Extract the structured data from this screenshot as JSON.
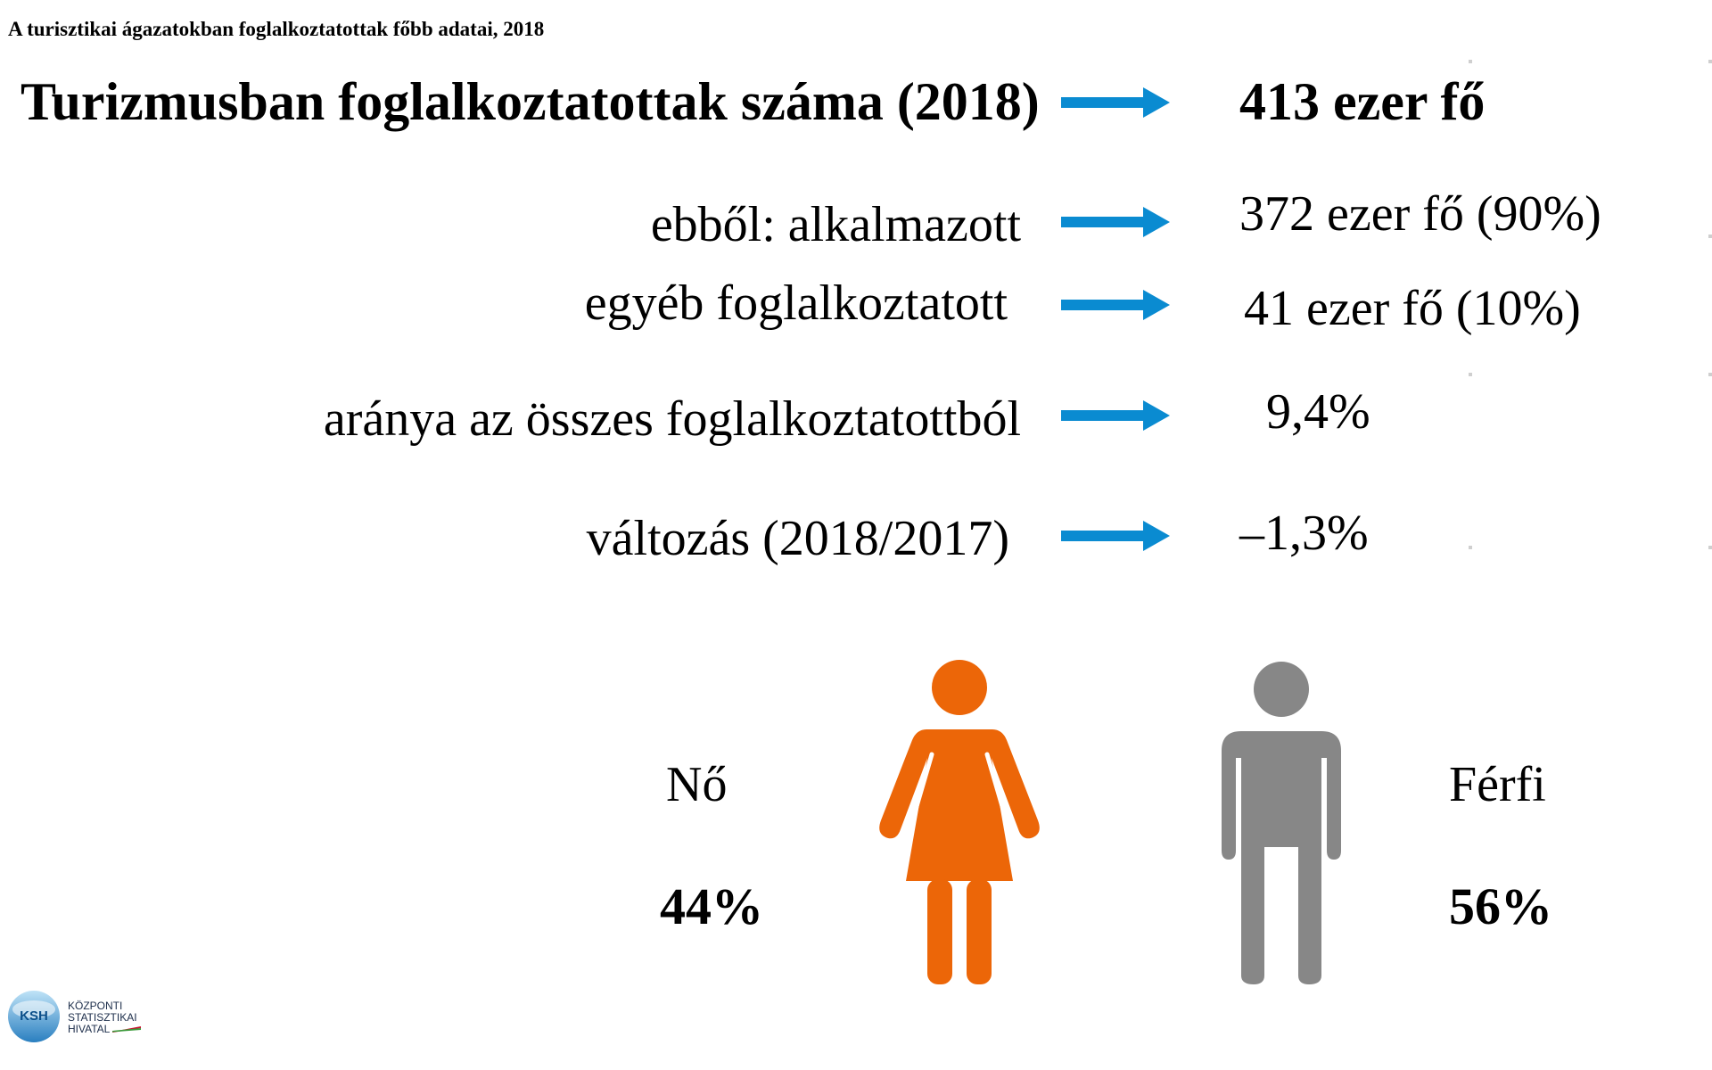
{
  "subtitle": "A turisztikai ágazatokban foglalkoztatottak főbb adatai, 2018",
  "main": {
    "label": "Turizmusban foglalkoztatottak száma (2018)",
    "value": "413 ezer fő"
  },
  "rows": [
    {
      "label": "ebből: alkalmazott",
      "value": "372 ezer fő (90%)"
    },
    {
      "label": "egyéb foglalkoztatott",
      "value": "41 ezer fő (10%)"
    },
    {
      "label": "aránya az összes foglalkoztatottból",
      "value": "9,4%"
    },
    {
      "label": "változás (2018/2017)",
      "value": "–1,3%"
    }
  ],
  "gender": {
    "female_label": "Nő",
    "female_pct": "44%",
    "male_label": "Férfi",
    "male_pct": "56%"
  },
  "logo": {
    "abbr": "KSH",
    "line1": "KÖZPONTI",
    "line2": "STATISZTIKAI",
    "line3": "HIVATAL"
  },
  "colors": {
    "arrow": "#0a8bd1",
    "female": "#ec6608",
    "male": "#878787"
  },
  "icons": [
    "arrow-right-icon",
    "woman-icon",
    "man-icon",
    "ksh-logo"
  ]
}
